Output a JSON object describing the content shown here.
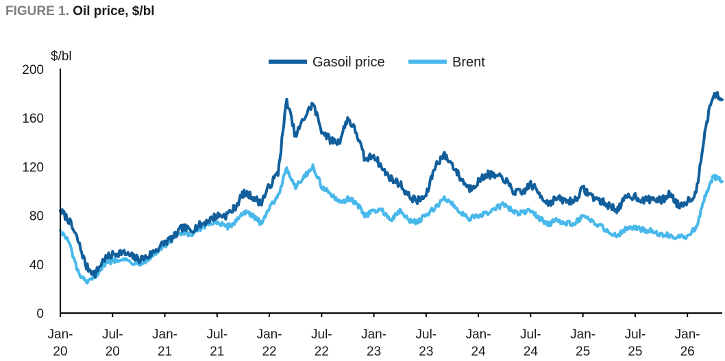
{
  "figure": {
    "lead": "FIGURE 1.",
    "title": "Oil price, $/bl"
  },
  "colors": {
    "gasoil": "#115e9b",
    "brent": "#48b8ea",
    "axis": "#000000"
  },
  "chart_data": {
    "type": "line",
    "title": "Oil price, $/bl",
    "ylabel": "$/bl",
    "xlabel": "",
    "ylim": [
      0,
      200
    ],
    "yticks": [
      0,
      40,
      80,
      120,
      160,
      200
    ],
    "xlim": [
      "2020-01",
      "2026-05"
    ],
    "xticks": [
      {
        "date": "2020-01",
        "label": [
          "Jan-",
          "20"
        ]
      },
      {
        "date": "2020-07",
        "label": [
          "Jul-",
          "20"
        ]
      },
      {
        "date": "2021-01",
        "label": [
          "Jan-",
          "21"
        ]
      },
      {
        "date": "2021-07",
        "label": [
          "Jul-",
          "21"
        ]
      },
      {
        "date": "2022-01",
        "label": [
          "Jan-",
          "22"
        ]
      },
      {
        "date": "2022-07",
        "label": [
          "Jul-",
          "22"
        ]
      },
      {
        "date": "2023-01",
        "label": [
          "Jan-",
          "23"
        ]
      },
      {
        "date": "2023-07",
        "label": [
          "Jul-",
          "23"
        ]
      },
      {
        "date": "2024-01",
        "label": [
          "Jan-",
          "24"
        ]
      },
      {
        "date": "2024-07",
        "label": [
          "Jul-",
          "24"
        ]
      },
      {
        "date": "2025-01",
        "label": [
          "Jan-",
          "25"
        ]
      },
      {
        "date": "2025-07",
        "label": [
          "Jul-",
          "25"
        ]
      },
      {
        "date": "2026-01",
        "label": [
          "Jan-",
          "26"
        ]
      }
    ],
    "legend_placement": "top-center",
    "grid": false,
    "series": [
      {
        "name": "Gasoil price",
        "color": "#115e9b",
        "points": [
          [
            "2020-01",
            84
          ],
          [
            "2020-02",
            76
          ],
          [
            "2020-03",
            60
          ],
          [
            "2020-04",
            38
          ],
          [
            "2020-05",
            32
          ],
          [
            "2020-06",
            44
          ],
          [
            "2020-07",
            48
          ],
          [
            "2020-08",
            50
          ],
          [
            "2020-09",
            47
          ],
          [
            "2020-10",
            44
          ],
          [
            "2020-11",
            46
          ],
          [
            "2020-12",
            52
          ],
          [
            "2021-01",
            58
          ],
          [
            "2021-02",
            62
          ],
          [
            "2021-03",
            70
          ],
          [
            "2021-04",
            68
          ],
          [
            "2021-05",
            72
          ],
          [
            "2021-06",
            76
          ],
          [
            "2021-07",
            80
          ],
          [
            "2021-08",
            80
          ],
          [
            "2021-09",
            86
          ],
          [
            "2021-10",
            98
          ],
          [
            "2021-11",
            96
          ],
          [
            "2021-12",
            90
          ],
          [
            "2022-01",
            104
          ],
          [
            "2022-02",
            115
          ],
          [
            "2022-03",
            175
          ],
          [
            "2022-04",
            145
          ],
          [
            "2022-05",
            160
          ],
          [
            "2022-06",
            172
          ],
          [
            "2022-07",
            150
          ],
          [
            "2022-08",
            142
          ],
          [
            "2022-09",
            140
          ],
          [
            "2022-10",
            160
          ],
          [
            "2022-11",
            148
          ],
          [
            "2022-12",
            125
          ],
          [
            "2023-01",
            130
          ],
          [
            "2023-02",
            118
          ],
          [
            "2023-03",
            110
          ],
          [
            "2023-04",
            106
          ],
          [
            "2023-05",
            96
          ],
          [
            "2023-06",
            92
          ],
          [
            "2023-07",
            96
          ],
          [
            "2023-08",
            120
          ],
          [
            "2023-09",
            130
          ],
          [
            "2023-10",
            122
          ],
          [
            "2023-11",
            110
          ],
          [
            "2023-12",
            102
          ],
          [
            "2024-01",
            108
          ],
          [
            "2024-02",
            114
          ],
          [
            "2024-03",
            112
          ],
          [
            "2024-04",
            110
          ],
          [
            "2024-05",
            100
          ],
          [
            "2024-06",
            98
          ],
          [
            "2024-07",
            106
          ],
          [
            "2024-08",
            98
          ],
          [
            "2024-09",
            90
          ],
          [
            "2024-10",
            94
          ],
          [
            "2024-11",
            92
          ],
          [
            "2024-12",
            92
          ],
          [
            "2025-01",
            102
          ],
          [
            "2025-02",
            96
          ],
          [
            "2025-03",
            92
          ],
          [
            "2025-04",
            88
          ],
          [
            "2025-05",
            85
          ],
          [
            "2025-06",
            95
          ],
          [
            "2025-07",
            96
          ],
          [
            "2025-08",
            92
          ],
          [
            "2025-09",
            94
          ],
          [
            "2025-10",
            92
          ],
          [
            "2025-11",
            98
          ],
          [
            "2025-12",
            88
          ],
          [
            "2026-01",
            92
          ],
          [
            "2026-02",
            98
          ],
          [
            "2026-03",
            150
          ],
          [
            "2026-04",
            180
          ],
          [
            "2026-05",
            175
          ]
        ]
      },
      {
        "name": "Brent",
        "color": "#48b8ea",
        "points": [
          [
            "2020-01",
            68
          ],
          [
            "2020-02",
            58
          ],
          [
            "2020-03",
            34
          ],
          [
            "2020-04",
            24
          ],
          [
            "2020-05",
            30
          ],
          [
            "2020-06",
            40
          ],
          [
            "2020-07",
            43
          ],
          [
            "2020-08",
            45
          ],
          [
            "2020-09",
            42
          ],
          [
            "2020-10",
            41
          ],
          [
            "2020-11",
            43
          ],
          [
            "2020-12",
            50
          ],
          [
            "2021-01",
            55
          ],
          [
            "2021-02",
            62
          ],
          [
            "2021-03",
            65
          ],
          [
            "2021-04",
            64
          ],
          [
            "2021-05",
            68
          ],
          [
            "2021-06",
            73
          ],
          [
            "2021-07",
            75
          ],
          [
            "2021-08",
            70
          ],
          [
            "2021-09",
            74
          ],
          [
            "2021-10",
            83
          ],
          [
            "2021-11",
            80
          ],
          [
            "2021-12",
            74
          ],
          [
            "2022-01",
            86
          ],
          [
            "2022-02",
            97
          ],
          [
            "2022-03",
            118
          ],
          [
            "2022-04",
            104
          ],
          [
            "2022-05",
            112
          ],
          [
            "2022-06",
            120
          ],
          [
            "2022-07",
            104
          ],
          [
            "2022-08",
            98
          ],
          [
            "2022-09",
            90
          ],
          [
            "2022-10",
            94
          ],
          [
            "2022-11",
            90
          ],
          [
            "2022-12",
            80
          ],
          [
            "2023-01",
            84
          ],
          [
            "2023-02",
            84
          ],
          [
            "2023-03",
            76
          ],
          [
            "2023-04",
            84
          ],
          [
            "2023-05",
            76
          ],
          [
            "2023-06",
            75
          ],
          [
            "2023-07",
            80
          ],
          [
            "2023-08",
            86
          ],
          [
            "2023-09",
            94
          ],
          [
            "2023-10",
            90
          ],
          [
            "2023-11",
            82
          ],
          [
            "2023-12",
            78
          ],
          [
            "2024-01",
            79
          ],
          [
            "2024-02",
            82
          ],
          [
            "2024-03",
            86
          ],
          [
            "2024-04",
            89
          ],
          [
            "2024-05",
            83
          ],
          [
            "2024-06",
            82
          ],
          [
            "2024-07",
            84
          ],
          [
            "2024-08",
            78
          ],
          [
            "2024-09",
            73
          ],
          [
            "2024-10",
            76
          ],
          [
            "2024-11",
            73
          ],
          [
            "2024-12",
            74
          ],
          [
            "2025-01",
            79
          ],
          [
            "2025-02",
            75
          ],
          [
            "2025-03",
            72
          ],
          [
            "2025-04",
            66
          ],
          [
            "2025-05",
            64
          ],
          [
            "2025-06",
            70
          ],
          [
            "2025-07",
            70
          ],
          [
            "2025-08",
            68
          ],
          [
            "2025-09",
            68
          ],
          [
            "2025-10",
            64
          ],
          [
            "2025-11",
            64
          ],
          [
            "2025-12",
            62
          ],
          [
            "2026-01",
            63
          ],
          [
            "2026-02",
            70
          ],
          [
            "2026-03",
            95
          ],
          [
            "2026-04",
            112
          ],
          [
            "2026-05",
            108
          ]
        ]
      }
    ]
  }
}
